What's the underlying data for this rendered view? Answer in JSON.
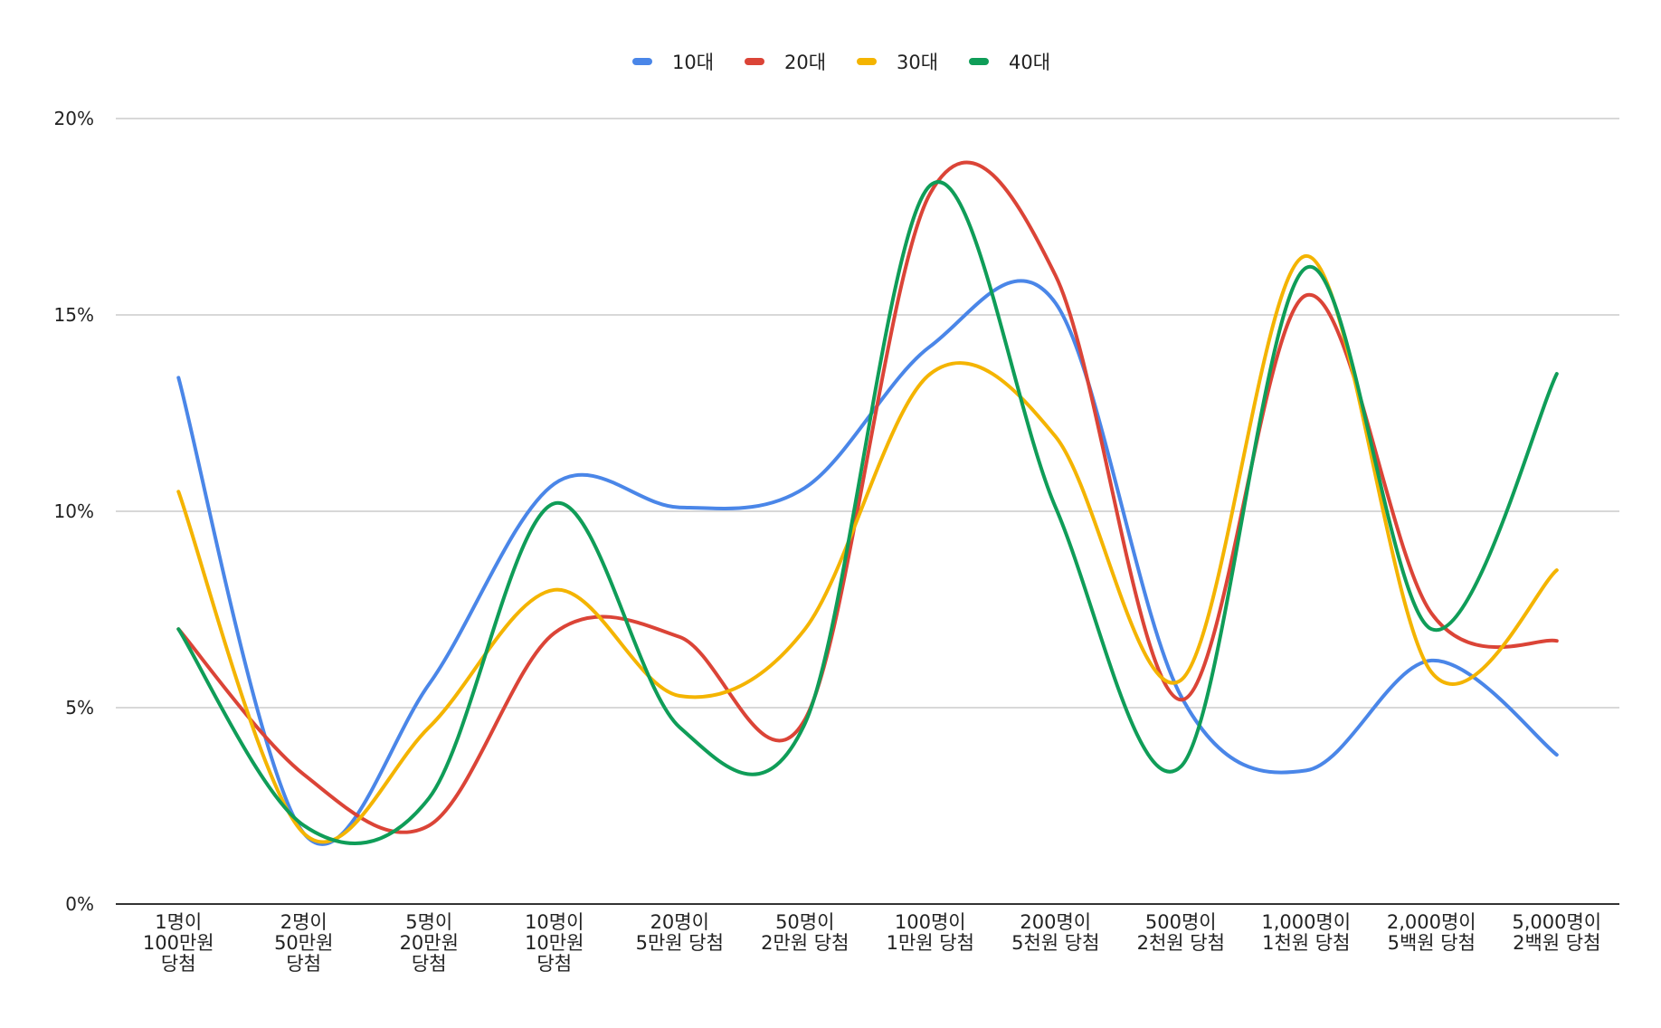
{
  "chart_data": {
    "type": "line",
    "title": "",
    "xlabel": "",
    "ylabel": "",
    "ylim": [
      0,
      20
    ],
    "ytick_labels": [
      "0%",
      "5%",
      "10%",
      "15%",
      "20%"
    ],
    "y_unit": "%",
    "grid": true,
    "legend_position": "top",
    "categories": [
      [
        "1명이",
        "100만원",
        "당첨"
      ],
      [
        "2명이",
        "50만원",
        "당첨"
      ],
      [
        "5명이",
        "20만원",
        "당첨"
      ],
      [
        "10명이",
        "10만원",
        "당첨"
      ],
      [
        "20명이",
        "5만원 당첨"
      ],
      [
        "50명이",
        "2만원 당첨"
      ],
      [
        "100명이",
        "1만원 당첨"
      ],
      [
        "200명이",
        "5천원 당첨"
      ],
      [
        "500명이",
        "2천원 당첨"
      ],
      [
        "1,000명이",
        "1천원 당첨"
      ],
      [
        "2,000명이",
        "5백원 당첨"
      ],
      [
        "5,000명이",
        "2백원 당첨"
      ]
    ],
    "series": [
      {
        "name": "10대",
        "color": "#4a86e8",
        "values": [
          13.4,
          1.8,
          5.6,
          10.7,
          10.1,
          10.6,
          14.2,
          15.3,
          5.3,
          3.4,
          6.2,
          3.8
        ]
      },
      {
        "name": "20대",
        "color": "#db4437",
        "values": [
          7.0,
          3.3,
          2.0,
          6.9,
          6.8,
          4.7,
          18.1,
          16.0,
          5.2,
          15.5,
          7.4,
          6.7
        ]
      },
      {
        "name": "30대",
        "color": "#f4b400",
        "values": [
          10.5,
          1.8,
          4.5,
          8.0,
          5.3,
          7.0,
          13.5,
          11.9,
          5.7,
          16.5,
          5.9,
          8.5
        ]
      },
      {
        "name": "40대",
        "color": "#0f9d58",
        "values": [
          7.0,
          2.0,
          2.7,
          10.2,
          4.5,
          4.6,
          18.3,
          10.1,
          3.5,
          16.2,
          7.0,
          13.5
        ]
      }
    ]
  }
}
